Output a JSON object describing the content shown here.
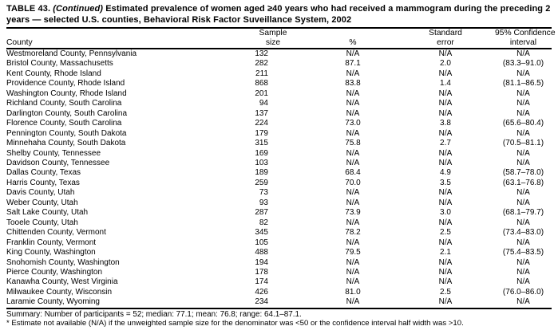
{
  "title": {
    "label": "TABLE 43. ",
    "continued": "(Continued)",
    "line1_rest": " Estimated prevalence of women aged ≥40 years who had received a mammogram during the preceding 2",
    "line2": "years — selected U.S. counties, Behavioral Risk Factor Suveillance System, 2002"
  },
  "table": {
    "columns": [
      {
        "line1": "",
        "line2": "County"
      },
      {
        "line1": "Sample",
        "line2": "size"
      },
      {
        "line1": "",
        "line2": "%"
      },
      {
        "line1": "Standard",
        "line2": "error"
      },
      {
        "line1": "95% Confidence",
        "line2": "interval"
      }
    ],
    "rows": [
      [
        "Westmoreland County, Pennsylvania",
        "132",
        "N/A",
        "N/A",
        "N/A"
      ],
      [
        "Bristol County, Massachusetts",
        "282",
        "87.1",
        "2.0",
        "(83.3–91.0)"
      ],
      [
        "Kent County, Rhode Island",
        "211",
        "N/A",
        "N/A",
        "N/A"
      ],
      [
        "Providence County, Rhode Island",
        "868",
        "83.8",
        "1.4",
        "(81.1–86.5)"
      ],
      [
        "Washington County, Rhode Island",
        "201",
        "N/A",
        "N/A",
        "N/A"
      ],
      [
        "Richland County, South Carolina",
        "94",
        "N/A",
        "N/A",
        "N/A"
      ],
      [
        "Darlington County, South Carolina",
        "137",
        "N/A",
        "N/A",
        "N/A"
      ],
      [
        "Florence County, South Carolina",
        "224",
        "73.0",
        "3.8",
        "(65.6–80.4)"
      ],
      [
        "Pennington County, South Dakota",
        "179",
        "N/A",
        "N/A",
        "N/A"
      ],
      [
        "Minnehaha County, South Dakota",
        "315",
        "75.8",
        "2.7",
        "(70.5–81.1)"
      ],
      [
        "Shelby County, Tennessee",
        "169",
        "N/A",
        "N/A",
        "N/A"
      ],
      [
        "Davidson County, Tennessee",
        "103",
        "N/A",
        "N/A",
        "N/A"
      ],
      [
        "Dallas County, Texas",
        "189",
        "68.4",
        "4.9",
        "(58.7–78.0)"
      ],
      [
        "Harris County, Texas",
        "259",
        "70.0",
        "3.5",
        "(63.1–76.8)"
      ],
      [
        "Davis County, Utah",
        "73",
        "N/A",
        "N/A",
        "N/A"
      ],
      [
        "Weber County, Utah",
        "93",
        "N/A",
        "N/A",
        "N/A"
      ],
      [
        "Salt Lake County, Utah",
        "287",
        "73.9",
        "3.0",
        "(68.1–79.7)"
      ],
      [
        "Tooele County, Utah",
        "82",
        "N/A",
        "N/A",
        "N/A"
      ],
      [
        "Chittenden County, Vermont",
        "345",
        "78.2",
        "2.5",
        "(73.4–83.0)"
      ],
      [
        "Franklin County, Vermont",
        "105",
        "N/A",
        "N/A",
        "N/A"
      ],
      [
        "King County, Washington",
        "488",
        "79.5",
        "2.1",
        "(75.4–83.5)"
      ],
      [
        "Snohomish County, Washington",
        "194",
        "N/A",
        "N/A",
        "N/A"
      ],
      [
        "Pierce County, Washington",
        "178",
        "N/A",
        "N/A",
        "N/A"
      ],
      [
        "Kanawha County, West Virginia",
        "174",
        "N/A",
        "N/A",
        "N/A"
      ],
      [
        "Milwaukee County, Wisconsin",
        "426",
        "81.0",
        "2.5",
        "(76.0–86.0)"
      ],
      [
        "Laramie County, Wyoming",
        "234",
        "N/A",
        "N/A",
        "N/A"
      ]
    ]
  },
  "summary": "Summary: Number of participants = 52; median: 77.1; mean: 76.8; range: 64.1–87.1.",
  "footnote": "* Estimate not available (N/A) if the unweighted sample size for the denominator was <50 or the confidence interval half width was >10.",
  "colors": {
    "text": "#000000",
    "background": "#ffffff",
    "rule": "#000000"
  }
}
